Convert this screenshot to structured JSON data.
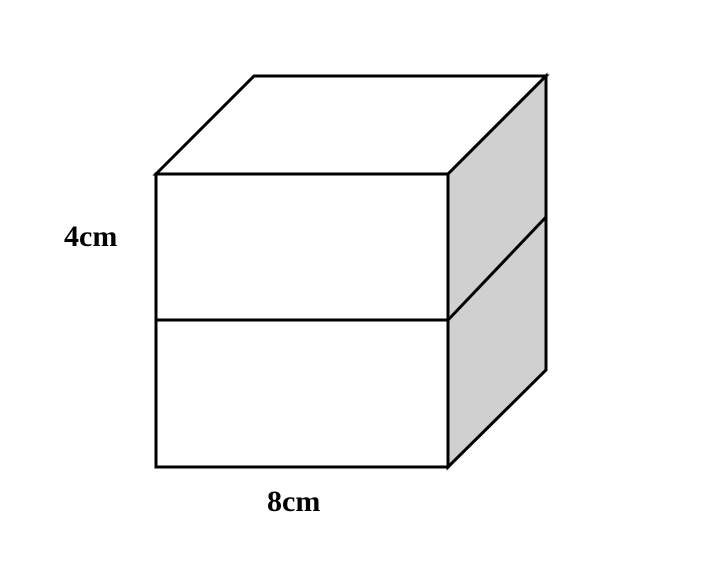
{
  "figure": {
    "description_free": true,
    "labels": {
      "height": "4cm",
      "width": "8cm"
    },
    "colors": {
      "stroke": "#000000",
      "front_face": "#ffffff",
      "top_face": "#ffffff",
      "side_face": "#d0d0d0"
    }
  }
}
